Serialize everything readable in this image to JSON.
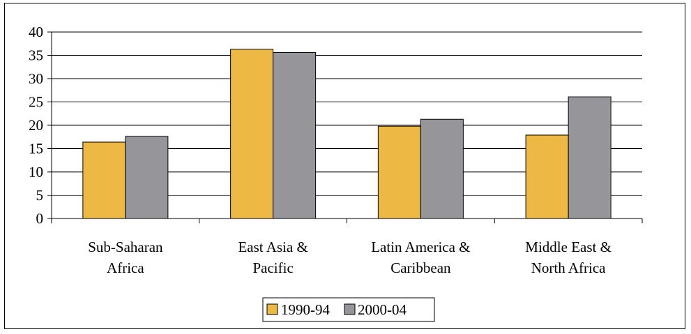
{
  "chart_data": {
    "type": "bar",
    "categories": [
      [
        "Sub-Saharan",
        "Africa"
      ],
      [
        "East Asia &",
        "Pacific"
      ],
      [
        "Latin America &",
        "Caribbean"
      ],
      [
        "Middle East &",
        "North Africa"
      ]
    ],
    "series": [
      {
        "name": "1990-94",
        "values": [
          16.4,
          36.3,
          19.8,
          17.9
        ],
        "color": "#EDB843"
      },
      {
        "name": "2000-04",
        "values": [
          17.6,
          35.6,
          21.3,
          26.1
        ],
        "color": "#96969A"
      }
    ],
    "ylim": [
      0,
      40
    ],
    "yticks": [
      "0",
      "5",
      "10",
      "15",
      "20",
      "25",
      "30",
      "35",
      "40"
    ],
    "ytick_values": [
      0,
      5,
      10,
      15,
      20,
      25,
      30,
      35,
      40
    ],
    "grid": true,
    "legend_position": "bottom-center"
  }
}
